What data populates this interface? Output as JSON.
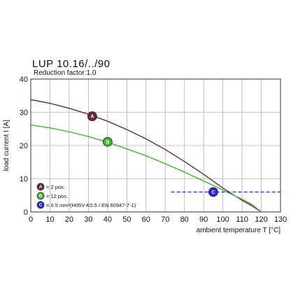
{
  "header": {
    "title": "LUP 10.16/../90",
    "subtitle": "Reduction factor:1.0"
  },
  "colors": {
    "series_a": "#6a2a3e",
    "series_b": "#3fb62e",
    "series_c": "#2727d4",
    "grid": "#b0b0b0"
  },
  "chart_data": {
    "type": "line",
    "xlabel": "ambient temperature T [°C]",
    "ylabel": "load current I [A]",
    "xlim": [
      0,
      130
    ],
    "ylim": [
      0,
      40
    ],
    "xticks": [
      "0",
      "10",
      "20",
      "30",
      "40",
      "50",
      "60",
      "70",
      "80",
      "90",
      "100",
      "110",
      "120",
      "130"
    ],
    "yticks": [
      "0",
      "10",
      "20",
      "30",
      "40"
    ],
    "grid": true,
    "series": [
      {
        "marker": "A",
        "legend": "= 2 pos.",
        "color": "#6a2a3e",
        "marker_at": [
          32,
          28.8
        ],
        "points": [
          [
            0,
            33.8
          ],
          [
            10,
            32.7
          ],
          [
            20,
            31.2
          ],
          [
            30,
            29.4
          ],
          [
            40,
            27.3
          ],
          [
            50,
            24.8
          ],
          [
            60,
            22.0
          ],
          [
            70,
            18.8
          ],
          [
            80,
            15.2
          ],
          [
            90,
            11.3
          ],
          [
            100,
            7.2
          ],
          [
            110,
            3.5
          ],
          [
            115,
            1.9
          ],
          [
            120,
            0
          ]
        ]
      },
      {
        "marker": "B",
        "legend": "= 12 pos.",
        "color": "#3fb62e",
        "marker_at": [
          40,
          21.1
        ],
        "points": [
          [
            0,
            26.2
          ],
          [
            10,
            25.3
          ],
          [
            20,
            24.1
          ],
          [
            30,
            22.7
          ],
          [
            40,
            21.0
          ],
          [
            50,
            19.0
          ],
          [
            60,
            16.9
          ],
          [
            70,
            14.5
          ],
          [
            80,
            12.0
          ],
          [
            90,
            9.3
          ],
          [
            100,
            6.6
          ],
          [
            110,
            3.8
          ],
          [
            115,
            2.3
          ],
          [
            120,
            0
          ]
        ]
      },
      {
        "marker": "C",
        "legend": "= 0.5 mm²(H05V-K0.5 / EN 60947-7-1)",
        "color": "#2727d4",
        "dashed": true,
        "marker_at": [
          95,
          6.0
        ],
        "points": [
          [
            73,
            6.0
          ],
          [
            130,
            6.0
          ]
        ]
      }
    ]
  }
}
